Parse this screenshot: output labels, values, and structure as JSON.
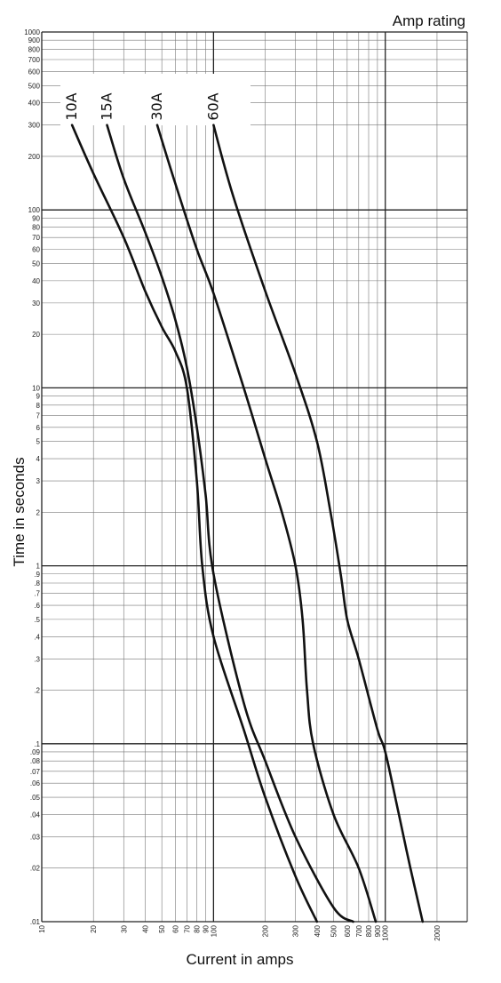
{
  "chart_data": {
    "type": "line",
    "title": "",
    "corner_label": "Amp rating",
    "xlabel": "Current in amps",
    "ylabel": "Time in seconds",
    "x_scale": "log",
    "y_scale": "log",
    "xlim": [
      10,
      3000
    ],
    "ylim": [
      0.01,
      1000
    ],
    "grid": true,
    "x_ticks": [
      {
        "v": 10,
        "label": "10"
      },
      {
        "v": 20,
        "label": "20"
      },
      {
        "v": 30,
        "label": "30"
      },
      {
        "v": 40,
        "label": "40"
      },
      {
        "v": 50,
        "label": "50"
      },
      {
        "v": 60,
        "label": "60"
      },
      {
        "v": 70,
        "label": "70"
      },
      {
        "v": 80,
        "label": "80"
      },
      {
        "v": 90,
        "label": "90"
      },
      {
        "v": 100,
        "label": "100"
      },
      {
        "v": 200,
        "label": "200"
      },
      {
        "v": 300,
        "label": "300"
      },
      {
        "v": 400,
        "label": "400"
      },
      {
        "v": 500,
        "label": "500"
      },
      {
        "v": 600,
        "label": "600"
      },
      {
        "v": 700,
        "label": "700"
      },
      {
        "v": 800,
        "label": "800"
      },
      {
        "v": 900,
        "label": "900"
      },
      {
        "v": 1000,
        "label": "1000"
      },
      {
        "v": 2000,
        "label": "2000"
      }
    ],
    "y_ticks": [
      {
        "v": 1000,
        "label": "1000"
      },
      {
        "v": 900,
        "label": "900"
      },
      {
        "v": 800,
        "label": "800"
      },
      {
        "v": 700,
        "label": "700"
      },
      {
        "v": 600,
        "label": "600"
      },
      {
        "v": 500,
        "label": "500"
      },
      {
        "v": 400,
        "label": "400"
      },
      {
        "v": 300,
        "label": "300"
      },
      {
        "v": 200,
        "label": "200"
      },
      {
        "v": 100,
        "label": "100"
      },
      {
        "v": 90,
        "label": "90"
      },
      {
        "v": 80,
        "label": "80"
      },
      {
        "v": 70,
        "label": "70"
      },
      {
        "v": 60,
        "label": "60"
      },
      {
        "v": 50,
        "label": "50"
      },
      {
        "v": 40,
        "label": "40"
      },
      {
        "v": 30,
        "label": "30"
      },
      {
        "v": 20,
        "label": "20"
      },
      {
        "v": 10,
        "label": "10"
      },
      {
        "v": 9,
        "label": "9"
      },
      {
        "v": 8,
        "label": "8"
      },
      {
        "v": 7,
        "label": "7"
      },
      {
        "v": 6,
        "label": "6"
      },
      {
        "v": 5,
        "label": "5"
      },
      {
        "v": 4,
        "label": "4"
      },
      {
        "v": 3,
        "label": "3"
      },
      {
        "v": 2,
        "label": "2"
      },
      {
        "v": 1,
        "label": "1"
      },
      {
        "v": 0.9,
        "label": ".9"
      },
      {
        "v": 0.8,
        "label": ".8"
      },
      {
        "v": 0.7,
        "label": ".7"
      },
      {
        "v": 0.6,
        "label": ".6"
      },
      {
        "v": 0.5,
        "label": ".5"
      },
      {
        "v": 0.4,
        "label": ".4"
      },
      {
        "v": 0.3,
        "label": ".3"
      },
      {
        "v": 0.2,
        "label": ".2"
      },
      {
        "v": 0.1,
        "label": ".1"
      },
      {
        "v": 0.09,
        "label": ".09"
      },
      {
        "v": 0.08,
        "label": ".08"
      },
      {
        "v": 0.07,
        "label": ".07"
      },
      {
        "v": 0.06,
        "label": ".06"
      },
      {
        "v": 0.05,
        "label": ".05"
      },
      {
        "v": 0.04,
        "label": ".04"
      },
      {
        "v": 0.03,
        "label": ".03"
      },
      {
        "v": 0.02,
        "label": ".02"
      },
      {
        "v": 0.01,
        "label": ".01"
      }
    ],
    "series": [
      {
        "name": "10A",
        "points": [
          [
            15,
            300
          ],
          [
            20,
            160
          ],
          [
            30,
            70
          ],
          [
            40,
            35
          ],
          [
            50,
            22
          ],
          [
            60,
            16
          ],
          [
            70,
            10
          ],
          [
            80,
            3
          ],
          [
            86,
            1
          ],
          [
            100,
            0.4
          ],
          [
            150,
            0.12
          ],
          [
            200,
            0.05
          ],
          [
            300,
            0.018
          ],
          [
            400,
            0.01
          ]
        ]
      },
      {
        "name": "15A",
        "points": [
          [
            24,
            300
          ],
          [
            30,
            150
          ],
          [
            40,
            75
          ],
          [
            50,
            42
          ],
          [
            60,
            24
          ],
          [
            70,
            13
          ],
          [
            80,
            6
          ],
          [
            90,
            2.5
          ],
          [
            100,
            0.9
          ],
          [
            150,
            0.17
          ],
          [
            200,
            0.08
          ],
          [
            300,
            0.03
          ],
          [
            500,
            0.012
          ],
          [
            650,
            0.01
          ]
        ]
      },
      {
        "name": "30A",
        "points": [
          [
            47,
            300
          ],
          [
            60,
            140
          ],
          [
            80,
            60
          ],
          [
            100,
            34
          ],
          [
            150,
            10
          ],
          [
            200,
            4
          ],
          [
            250,
            2
          ],
          [
            300,
            1
          ],
          [
            330,
            0.5
          ],
          [
            350,
            0.2
          ],
          [
            380,
            0.1
          ],
          [
            500,
            0.04
          ],
          [
            700,
            0.02
          ],
          [
            880,
            0.01
          ]
        ]
      },
      {
        "name": "60A",
        "points": [
          [
            100,
            300
          ],
          [
            130,
            120
          ],
          [
            200,
            35
          ],
          [
            300,
            12
          ],
          [
            400,
            5
          ],
          [
            480,
            2
          ],
          [
            550,
            0.9
          ],
          [
            600,
            0.5
          ],
          [
            700,
            0.3
          ],
          [
            900,
            0.12
          ],
          [
            1000,
            0.09
          ],
          [
            1200,
            0.04
          ],
          [
            1400,
            0.02
          ],
          [
            1650,
            0.01
          ]
        ]
      }
    ]
  }
}
